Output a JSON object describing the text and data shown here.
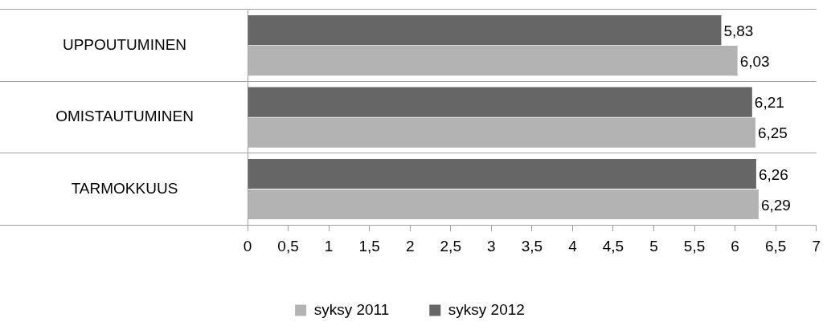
{
  "chart_data": {
    "type": "bar",
    "orientation": "horizontal",
    "categories": [
      "UPPOUTUMINEN",
      "OMISTAUTUMINEN",
      "TARMOKKUUS"
    ],
    "series": [
      {
        "name": "syksy 2011",
        "color": "#b3b3b3",
        "values": [
          6.03,
          6.25,
          6.29
        ],
        "value_labels": [
          "6,03",
          "6,25",
          "6,29"
        ]
      },
      {
        "name": "syksy 2012",
        "color": "#666666",
        "values": [
          5.83,
          6.21,
          6.26
        ],
        "value_labels": [
          "5,83",
          "6,21",
          "6,26"
        ]
      }
    ],
    "xlim": [
      0,
      7
    ],
    "xticks": [
      {
        "value": 0,
        "label": "0"
      },
      {
        "value": 0.5,
        "label": "0,5"
      },
      {
        "value": 1,
        "label": "1"
      },
      {
        "value": 1.5,
        "label": "1,5"
      },
      {
        "value": 2,
        "label": "2"
      },
      {
        "value": 2.5,
        "label": "2,5"
      },
      {
        "value": 3,
        "label": "3"
      },
      {
        "value": 3.5,
        "label": "3,5"
      },
      {
        "value": 4,
        "label": "4"
      },
      {
        "value": 4.5,
        "label": "4,5"
      },
      {
        "value": 5,
        "label": "5"
      },
      {
        "value": 5.5,
        "label": "5,5"
      },
      {
        "value": 6,
        "label": "6"
      },
      {
        "value": 6.5,
        "label": "6,5"
      },
      {
        "value": 7,
        "label": "7"
      }
    ],
    "grid": "y",
    "legend": "bottom"
  }
}
